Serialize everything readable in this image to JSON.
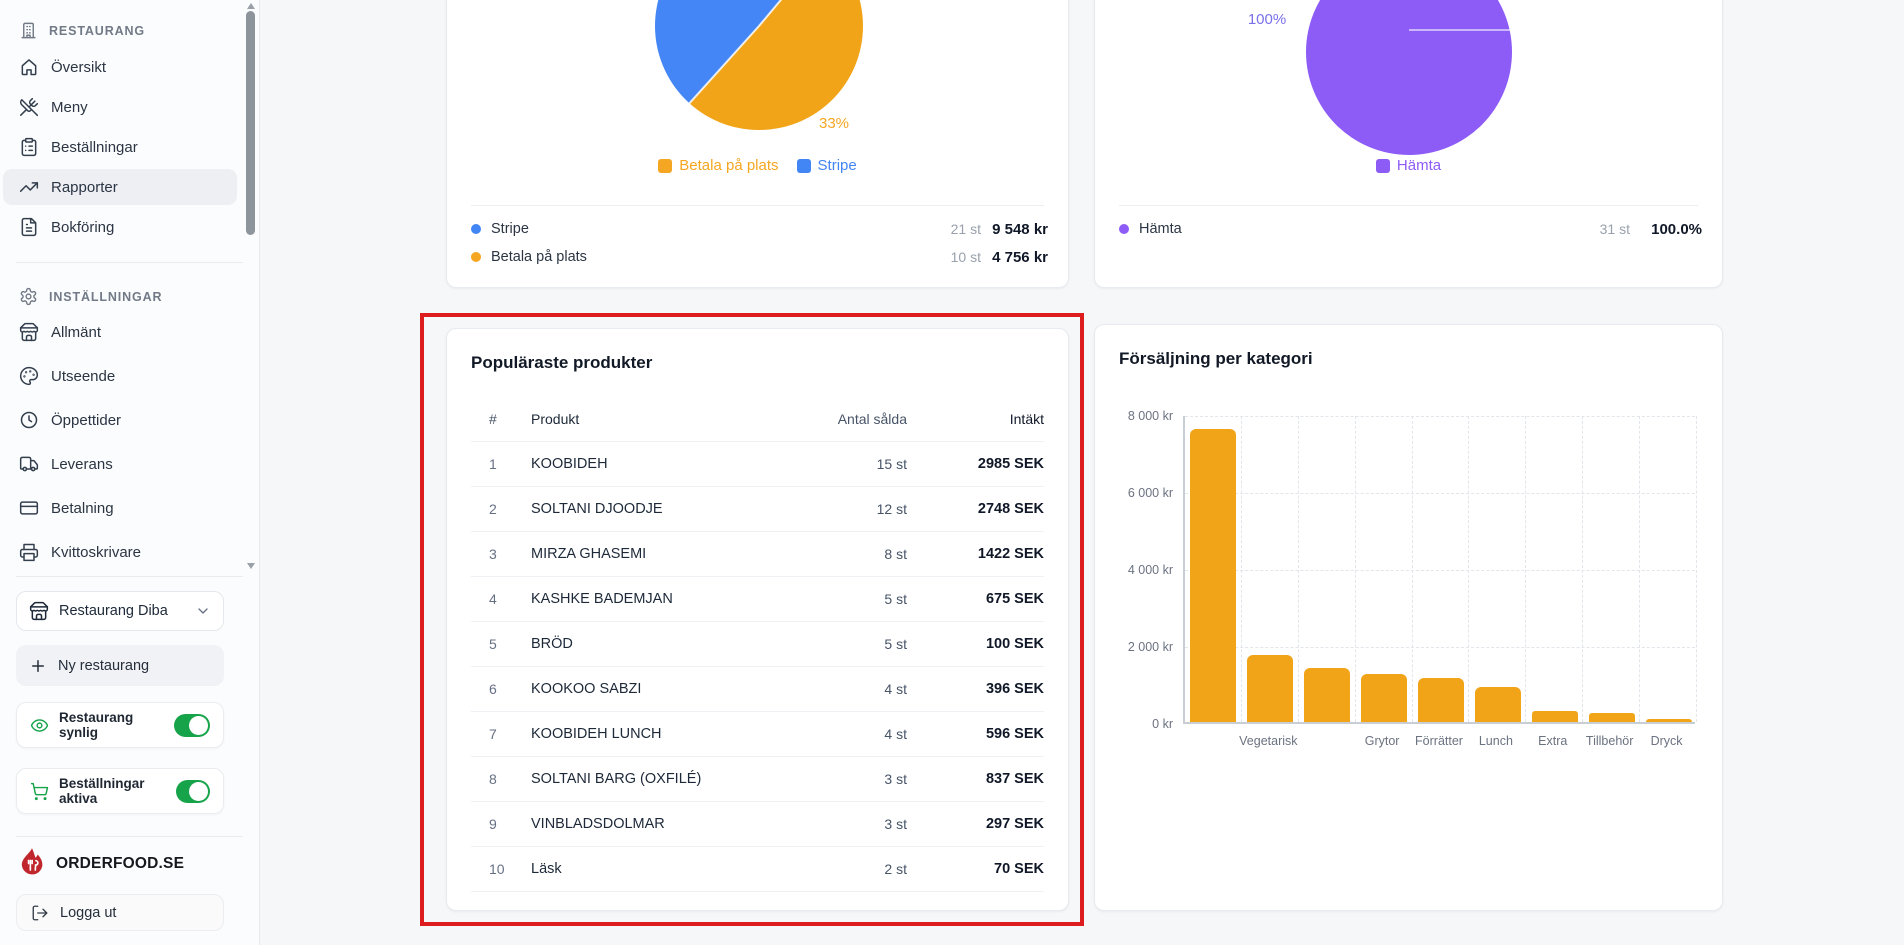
{
  "sidebar": {
    "sections": [
      {
        "header": "RESTAURANG",
        "icon": "building-icon",
        "items": [
          {
            "label": "Översikt",
            "icon": "home-icon",
            "active": false
          },
          {
            "label": "Meny",
            "icon": "utensils-icon",
            "active": false
          },
          {
            "label": "Beställningar",
            "icon": "clipboard-icon",
            "active": false
          },
          {
            "label": "Rapporter",
            "icon": "trending-up-icon",
            "active": true
          },
          {
            "label": "Bokföring",
            "icon": "file-text-icon",
            "active": false
          }
        ]
      },
      {
        "header": "INSTÄLLNINGAR",
        "icon": "gear-icon",
        "items": [
          {
            "label": "Allmänt",
            "icon": "store-icon",
            "active": false
          },
          {
            "label": "Utseende",
            "icon": "palette-icon",
            "active": false
          },
          {
            "label": "Öppettider",
            "icon": "clock-icon",
            "active": false
          },
          {
            "label": "Leverans",
            "icon": "truck-icon",
            "active": false
          },
          {
            "label": "Betalning",
            "icon": "credit-card-icon",
            "active": false
          },
          {
            "label": "Kvittoskrivare",
            "icon": "printer-icon",
            "active": false
          }
        ]
      }
    ],
    "restaurant_selector": {
      "label": "Restaurang Diba",
      "icon": "store-icon"
    },
    "new_restaurant_label": "Ny restaurang",
    "toggles": [
      {
        "label": "Restaurang synlig",
        "icon": "eye-icon",
        "on": true
      },
      {
        "label": "Beställningar aktiva",
        "icon": "cart-icon",
        "on": true
      }
    ],
    "logo_text": "ORDERFOOD.SE",
    "logout_label": "Logga ut"
  },
  "cards": {
    "payments": {
      "slice_label": "33%",
      "legend": [
        {
          "label": "Betala på plats",
          "color": "#f5a623"
        },
        {
          "label": "Stripe",
          "color": "#4285f4"
        }
      ],
      "rows": [
        {
          "label": "Stripe",
          "color": "#4285f4",
          "count": "21 st",
          "value": "9 548 kr"
        },
        {
          "label": "Betala på plats",
          "color": "#f5a623",
          "count": "10 st",
          "value": "4 756 kr"
        }
      ]
    },
    "pickup": {
      "slice_label": "100%",
      "legend": [
        {
          "label": "Hämta",
          "color": "#8d5cf6"
        }
      ],
      "rows": [
        {
          "label": "Hämta",
          "color": "#8d5cf6",
          "count": "31 st",
          "value": "100.0%"
        }
      ]
    },
    "products": {
      "title": "Populäraste produkter",
      "headers": [
        "#",
        "Produkt",
        "Antal sålda",
        "Intäkt"
      ],
      "rows": [
        {
          "rank": "1",
          "product": "KOOBIDEH",
          "sold": "15 st",
          "revenue": "2985 SEK"
        },
        {
          "rank": "2",
          "product": "SOLTANI DJOODJE",
          "sold": "12 st",
          "revenue": "2748 SEK"
        },
        {
          "rank": "3",
          "product": "MIRZA GHASEMI",
          "sold": "8 st",
          "revenue": "1422 SEK"
        },
        {
          "rank": "4",
          "product": "KASHKE BADEMJAN",
          "sold": "5 st",
          "revenue": "675 SEK"
        },
        {
          "rank": "5",
          "product": "BRÖD",
          "sold": "5 st",
          "revenue": "100 SEK"
        },
        {
          "rank": "6",
          "product": "KOOKOO SABZI",
          "sold": "4 st",
          "revenue": "396 SEK"
        },
        {
          "rank": "7",
          "product": "KOOBIDEH LUNCH",
          "sold": "4 st",
          "revenue": "596 SEK"
        },
        {
          "rank": "8",
          "product": "SOLTANI BARG (OXFILÉ)",
          "sold": "3 st",
          "revenue": "837 SEK"
        },
        {
          "rank": "9",
          "product": "VINBLADSDOLMAR",
          "sold": "3 st",
          "revenue": "297 SEK"
        },
        {
          "rank": "10",
          "product": "Läsk",
          "sold": "2 st",
          "revenue": "70 SEK"
        }
      ]
    },
    "categories": {
      "title": "Försäljning per kategori"
    }
  },
  "chart_data": [
    {
      "type": "pie",
      "series": [
        {
          "name": "Betala på plats",
          "value": 33,
          "color": "#f2a418",
          "count_st": 10,
          "amount": "4 756 kr"
        },
        {
          "name": "Stripe",
          "value": 67,
          "color": "#4486f5",
          "count_st": 21,
          "amount": "9 548 kr"
        }
      ],
      "visible_label": "33%",
      "legend_position": "bottom"
    },
    {
      "type": "pie",
      "series": [
        {
          "name": "Hämta",
          "value": 100,
          "color": "#8d5cf6",
          "count_st": 31,
          "percent": "100.0%"
        }
      ],
      "visible_label": "100%",
      "legend_position": "bottom"
    },
    {
      "type": "bar",
      "title": "Försäljning per kategori",
      "categories": [
        "",
        "Vegetarisk",
        "",
        "Grytor",
        "Förrätter",
        "Lunch",
        "Extra",
        "Tillbehör",
        "Dryck"
      ],
      "values": [
        7600,
        1750,
        1400,
        1250,
        1150,
        900,
        280,
        230,
        80
      ],
      "bar_color": "#f2a418",
      "ylim": [
        0,
        8000
      ],
      "ytick_labels": [
        "8 000 kr",
        "6 000 kr",
        "4 000 kr",
        "2 000 kr",
        "0 kr"
      ],
      "grid": "dashed"
    }
  ],
  "annotation": {
    "highlight_color": "#dd1d1d"
  }
}
